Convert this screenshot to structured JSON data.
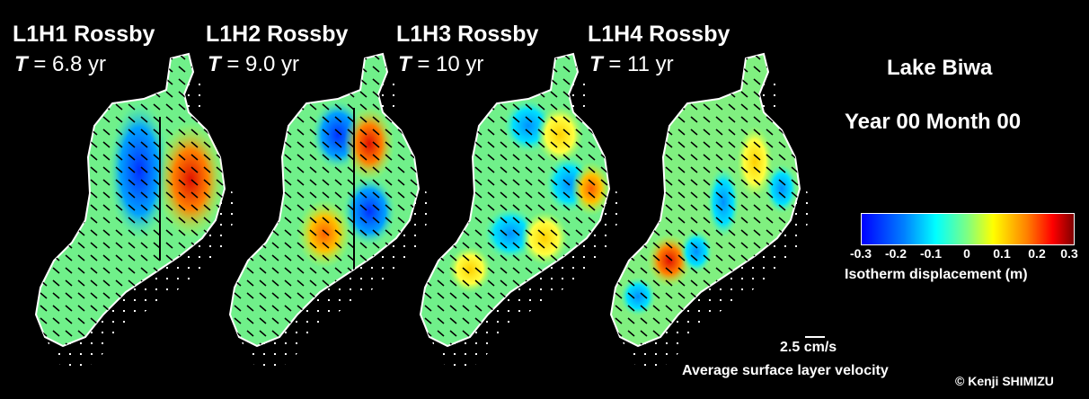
{
  "panels": [
    {
      "title": "L1H1 Rossby",
      "period_symbol": "T",
      "period_value": " = 6.8 yr"
    },
    {
      "title": "L1H2 Rossby",
      "period_symbol": "T",
      "period_value": " = 9.0 yr"
    },
    {
      "title": "L1H3 Rossby",
      "period_symbol": "T",
      "period_value": " = 10 yr"
    },
    {
      "title": "L1H4 Rossby",
      "period_symbol": "T",
      "period_value": " = 11 yr"
    }
  ],
  "lake_name": "Lake Biwa",
  "time_label": "Year 00 Month 00",
  "colorbar": {
    "ticks": [
      "-0.3",
      "-0.2",
      "-0.1",
      "0",
      "0.1",
      "0.2",
      "0.3"
    ],
    "label": "Isotherm displacement (m)",
    "colors": [
      "#0000ff",
      "#00ffff",
      "#80ff80",
      "#ffff00",
      "#ff0000",
      "#800000"
    ]
  },
  "velocity_scale": {
    "value": "2.5 cm/s",
    "label": "Average surface layer velocity"
  },
  "credit": "© Kenji SHIMIZU",
  "icons": [
    "lake-map"
  ]
}
